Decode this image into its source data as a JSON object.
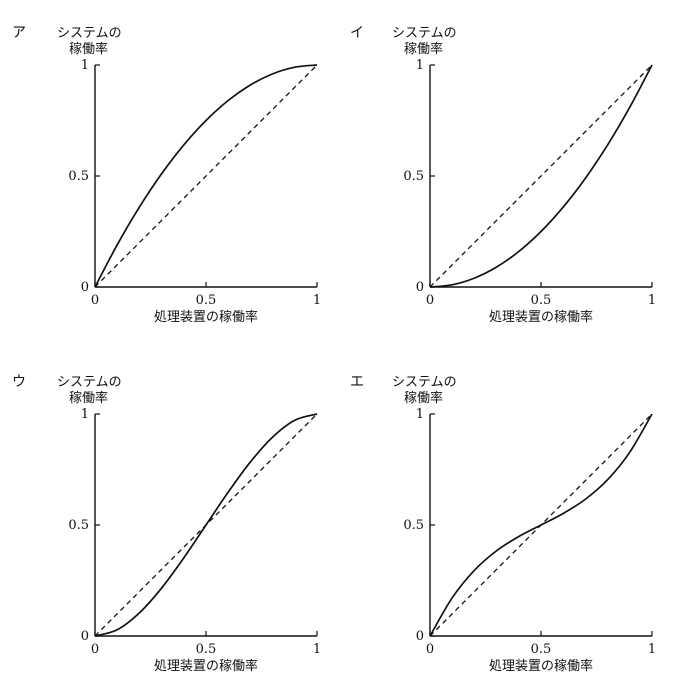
{
  "chart_data": [
    {
      "type": "line",
      "panel_label": "ア",
      "ylabel_line1": "システムの",
      "ylabel_line2": "稼働率",
      "xlabel": "処理装置の稼働率",
      "xlim": [
        0,
        1
      ],
      "ylim": [
        0,
        1
      ],
      "xticks": [
        "0",
        "0.5",
        "1"
      ],
      "yticks": [
        "0",
        "0.5",
        "1"
      ],
      "series": [
        {
          "style": "solid",
          "x": [
            0,
            0.1,
            0.2,
            0.3,
            0.4,
            0.5,
            0.6,
            0.7,
            0.8,
            0.9,
            1.0
          ],
          "y": [
            0,
            0.19,
            0.36,
            0.51,
            0.64,
            0.75,
            0.84,
            0.91,
            0.96,
            0.99,
            1.0
          ]
        },
        {
          "style": "dashed",
          "x": [
            0,
            1
          ],
          "y": [
            0,
            1
          ]
        }
      ]
    },
    {
      "type": "line",
      "panel_label": "イ",
      "ylabel_line1": "システムの",
      "ylabel_line2": "稼働率",
      "xlabel": "処理装置の稼働率",
      "xlim": [
        0,
        1
      ],
      "ylim": [
        0,
        1
      ],
      "xticks": [
        "0",
        "0.5",
        "1"
      ],
      "yticks": [
        "0",
        "0.5",
        "1"
      ],
      "series": [
        {
          "style": "solid",
          "x": [
            0,
            0.1,
            0.2,
            0.3,
            0.4,
            0.5,
            0.6,
            0.7,
            0.8,
            0.9,
            1.0
          ],
          "y": [
            0,
            0.01,
            0.04,
            0.09,
            0.16,
            0.25,
            0.36,
            0.49,
            0.64,
            0.81,
            1.0
          ]
        },
        {
          "style": "dashed",
          "x": [
            0,
            1
          ],
          "y": [
            0,
            1
          ]
        }
      ]
    },
    {
      "type": "line",
      "panel_label": "ウ",
      "ylabel_line1": "システムの",
      "ylabel_line2": "稼働率",
      "xlabel": "処理装置の稼働率",
      "xlim": [
        0,
        1
      ],
      "ylim": [
        0,
        1
      ],
      "xticks": [
        "0",
        "0.5",
        "1"
      ],
      "yticks": [
        "0",
        "0.5",
        "1"
      ],
      "series": [
        {
          "style": "solid",
          "x": [
            0,
            0.1,
            0.2,
            0.3,
            0.4,
            0.5,
            0.6,
            0.7,
            0.8,
            0.9,
            1.0
          ],
          "y": [
            0,
            0.028,
            0.104,
            0.216,
            0.352,
            0.5,
            0.648,
            0.784,
            0.896,
            0.972,
            1.0
          ]
        },
        {
          "style": "dashed",
          "x": [
            0,
            1
          ],
          "y": [
            0,
            1
          ]
        }
      ]
    },
    {
      "type": "line",
      "panel_label": "エ",
      "ylabel_line1": "システムの",
      "ylabel_line2": "稼働率",
      "xlabel": "処理装置の稼働率",
      "xlim": [
        0,
        1
      ],
      "ylim": [
        0,
        1
      ],
      "xticks": [
        "0",
        "0.5",
        "1"
      ],
      "yticks": [
        "0",
        "0.5",
        "1"
      ],
      "series": [
        {
          "style": "solid",
          "x": [
            0,
            0.1,
            0.2,
            0.3,
            0.4,
            0.5,
            0.6,
            0.7,
            0.8,
            0.9,
            1.0
          ],
          "y": [
            0,
            0.172,
            0.296,
            0.384,
            0.448,
            0.5,
            0.552,
            0.616,
            0.704,
            0.828,
            1.0
          ]
        },
        {
          "style": "dashed",
          "x": [
            0,
            1
          ],
          "y": [
            0,
            1
          ]
        }
      ]
    }
  ]
}
